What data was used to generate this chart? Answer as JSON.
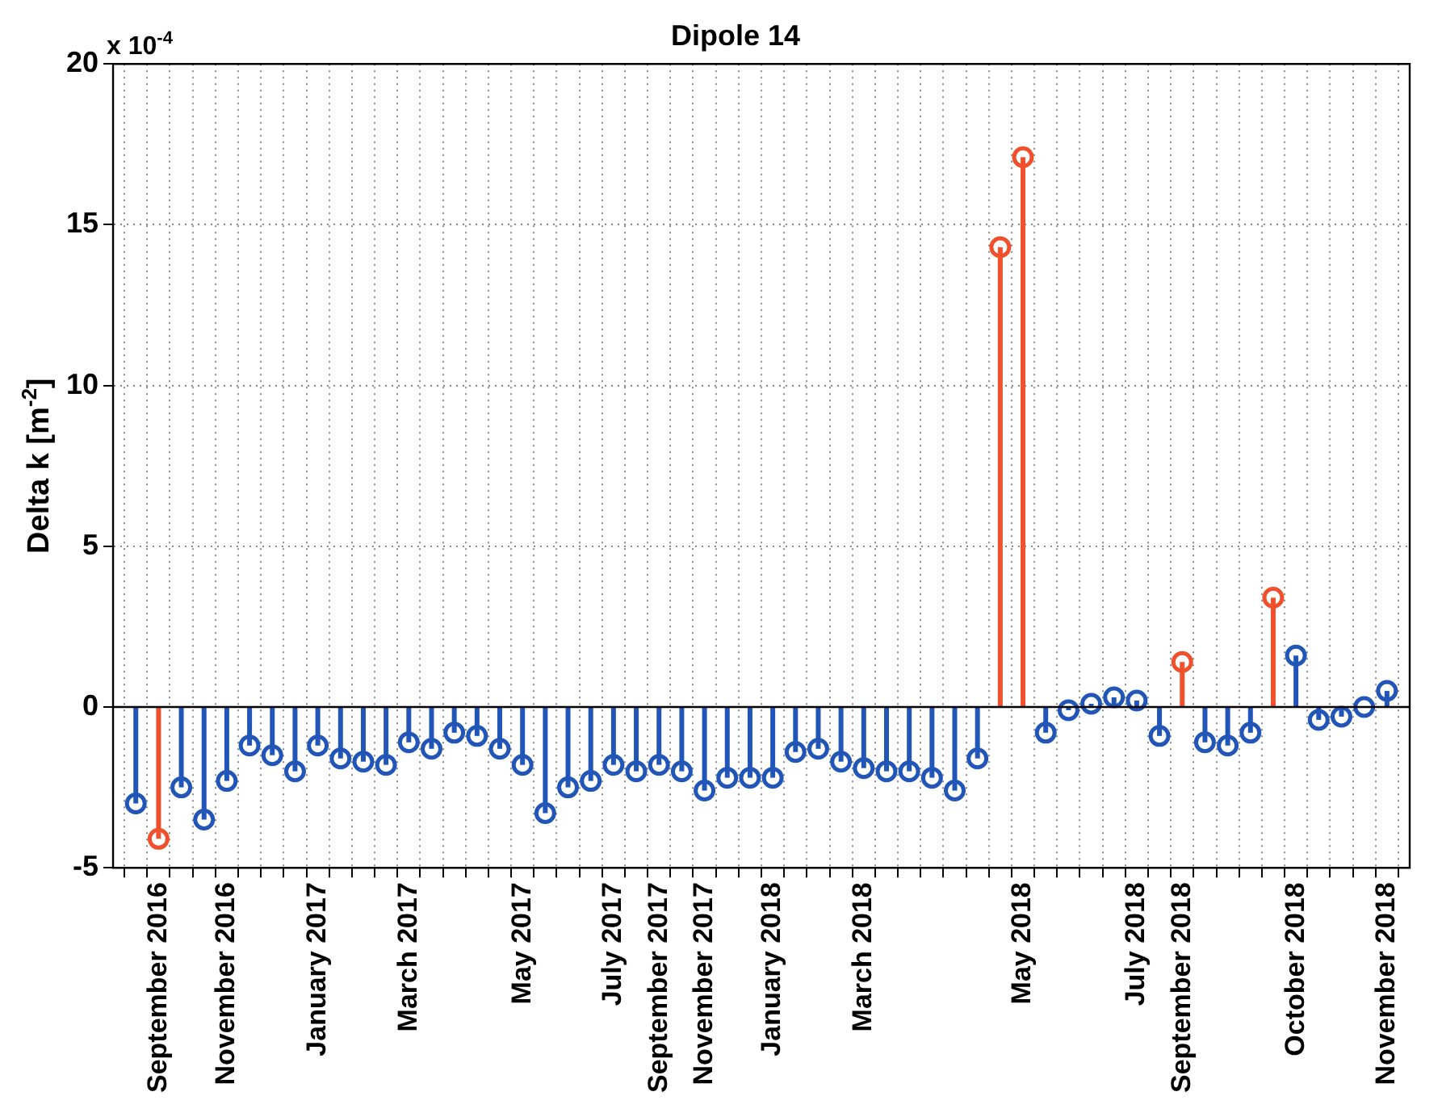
{
  "chart_data": {
    "type": "lollipop",
    "title": "Dipole 14",
    "ylabel": "Delta k [m$^{-2}$]",
    "annotations": [
      "x 10$^{-4}$"
    ],
    "categories": [
      null,
      "September 2016",
      null,
      null,
      "November 2016",
      null,
      null,
      null,
      "January 2017",
      null,
      null,
      null,
      "March 2017",
      null,
      null,
      null,
      null,
      "May 2017",
      null,
      null,
      null,
      "July 2017",
      null,
      "September 2017",
      null,
      "November 2017",
      null,
      null,
      "January 2018",
      null,
      null,
      null,
      "March 2018",
      null,
      null,
      null,
      null,
      null,
      null,
      "May 2018",
      null,
      null,
      null,
      null,
      "July 2018",
      null,
      "September 2018",
      null,
      null,
      null,
      null,
      "October 2018",
      null,
      null,
      null,
      "November 2018"
    ],
    "values": [
      -3.0,
      -4.1,
      -2.5,
      -3.5,
      -2.3,
      -1.2,
      -1.5,
      -2.0,
      -1.2,
      -1.6,
      -1.7,
      -1.8,
      -1.1,
      -1.3,
      -0.8,
      -0.9,
      -1.3,
      -1.8,
      -3.3,
      -2.5,
      -2.3,
      -1.8,
      -2.0,
      -1.8,
      -2.0,
      -2.6,
      -2.2,
      -2.2,
      -2.2,
      -1.4,
      -1.3,
      -1.7,
      -1.9,
      -2.0,
      -2.0,
      -2.2,
      -2.6,
      -1.6,
      14.3,
      17.1,
      -0.8,
      -0.1,
      0.1,
      0.3,
      0.2,
      -0.9,
      1.4,
      -1.1,
      -1.2,
      -0.8,
      3.4,
      1.6,
      -0.4,
      -0.3,
      0.0,
      0.5
    ],
    "colors": [
      "#2155b8",
      "#f0502c",
      "#2155b8",
      "#2155b8",
      "#2155b8",
      "#2155b8",
      "#2155b8",
      "#2155b8",
      "#2155b8",
      "#2155b8",
      "#2155b8",
      "#2155b8",
      "#2155b8",
      "#2155b8",
      "#2155b8",
      "#2155b8",
      "#2155b8",
      "#2155b8",
      "#2155b8",
      "#2155b8",
      "#2155b8",
      "#2155b8",
      "#2155b8",
      "#2155b8",
      "#2155b8",
      "#2155b8",
      "#2155b8",
      "#2155b8",
      "#2155b8",
      "#2155b8",
      "#2155b8",
      "#2155b8",
      "#2155b8",
      "#2155b8",
      "#2155b8",
      "#2155b8",
      "#2155b8",
      "#2155b8",
      "#f0502c",
      "#f0502c",
      "#2155b8",
      "#2155b8",
      "#2155b8",
      "#2155b8",
      "#2155b8",
      "#2155b8",
      "#f0502c",
      "#2155b8",
      "#2155b8",
      "#2155b8",
      "#f0502c",
      "#2155b8",
      "#2155b8",
      "#2155b8",
      "#2155b8",
      "#2155b8"
    ],
    "ylim": [
      -5,
      20
    ],
    "yticks": [
      -5,
      0,
      5,
      10,
      15,
      20
    ],
    "grid": true,
    "marker": "circle"
  }
}
